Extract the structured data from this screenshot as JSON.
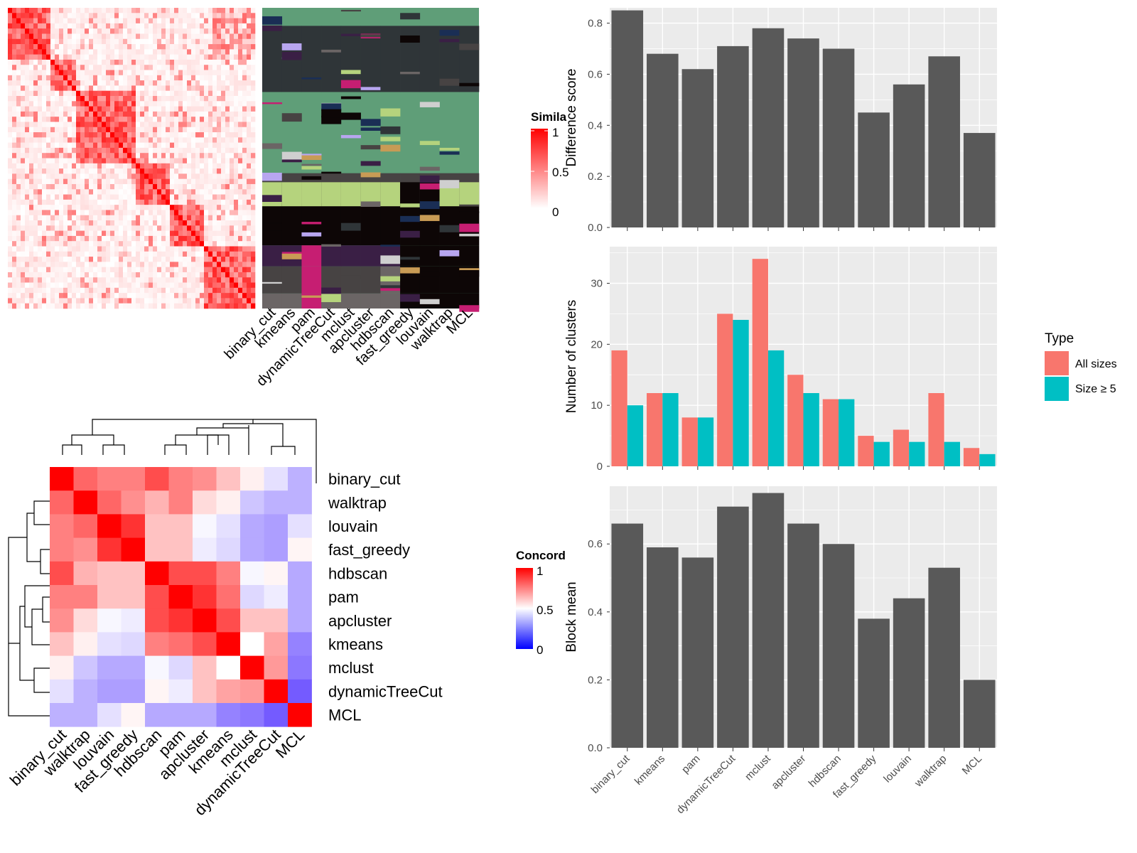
{
  "methods_order": [
    "binary_cut",
    "kmeans",
    "pam",
    "dynamicTreeCut",
    "mclust",
    "apcluster",
    "hdbscan",
    "fast_greedy",
    "louvain",
    "walktrap",
    "MCL"
  ],
  "similarity_legend": {
    "title": "Simila",
    "ticks": [
      "1",
      "0.5",
      "0"
    ]
  },
  "concordance_legend": {
    "title": "Concord",
    "ticks": [
      "1",
      "0.5",
      "0"
    ]
  },
  "type_legend": {
    "title": "Type",
    "items": [
      "All sizes",
      "Size ≥ 5"
    ]
  },
  "colors": {
    "all_sizes": "#F8766D",
    "size_ge5": "#00BFC4",
    "bar": "#595959",
    "panel": "#EBEBEB"
  },
  "chart_data": [
    {
      "type": "heatmap",
      "name": "similarity_matrix",
      "title": "",
      "legend_title": "Simila",
      "scale": [
        0,
        1
      ]
    },
    {
      "type": "heatmap",
      "name": "cluster_membership",
      "columns": [
        "binary_cut",
        "kmeans",
        "pam",
        "dynamicTreeCut",
        "mclust",
        "apcluster",
        "hdbscan",
        "fast_greedy",
        "louvain",
        "walktrap",
        "MCL"
      ]
    },
    {
      "type": "heatmap",
      "name": "concordance_matrix",
      "legend_title": "Concord",
      "labels": [
        "binary_cut",
        "walktrap",
        "louvain",
        "fast_greedy",
        "hdbscan",
        "pam",
        "apcluster",
        "kmeans",
        "mclust",
        "dynamicTreeCut",
        "MCL"
      ],
      "values": [
        [
          1.0,
          0.8,
          0.75,
          0.75,
          0.85,
          0.75,
          0.72,
          0.62,
          0.53,
          0.42,
          0.3
        ],
        [
          0.8,
          1.0,
          0.8,
          0.72,
          0.65,
          0.75,
          0.57,
          0.53,
          0.35,
          0.3,
          0.3
        ],
        [
          0.75,
          0.8,
          1.0,
          0.9,
          0.62,
          0.62,
          0.48,
          0.42,
          0.28,
          0.25,
          0.42
        ],
        [
          0.75,
          0.72,
          0.9,
          1.0,
          0.62,
          0.62,
          0.45,
          0.4,
          0.28,
          0.25,
          0.52
        ],
        [
          0.85,
          0.65,
          0.62,
          0.62,
          1.0,
          0.85,
          0.85,
          0.75,
          0.48,
          0.52,
          0.28
        ],
        [
          0.75,
          0.75,
          0.62,
          0.62,
          0.85,
          1.0,
          0.9,
          0.78,
          0.4,
          0.45,
          0.28
        ],
        [
          0.72,
          0.57,
          0.48,
          0.45,
          0.85,
          0.9,
          1.0,
          0.85,
          0.62,
          0.62,
          0.28
        ],
        [
          0.62,
          0.53,
          0.42,
          0.4,
          0.75,
          0.78,
          0.85,
          1.0,
          0.5,
          0.68,
          0.18
        ],
        [
          0.53,
          0.35,
          0.28,
          0.28,
          0.48,
          0.4,
          0.62,
          0.5,
          1.0,
          0.7,
          0.15
        ],
        [
          0.42,
          0.3,
          0.25,
          0.25,
          0.52,
          0.45,
          0.62,
          0.68,
          0.7,
          1.0,
          0.08
        ],
        [
          0.3,
          0.3,
          0.42,
          0.52,
          0.28,
          0.28,
          0.28,
          0.18,
          0.15,
          0.08,
          1.0
        ]
      ],
      "scale": [
        0,
        1
      ]
    },
    {
      "type": "bar",
      "categories": [
        "binary_cut",
        "kmeans",
        "pam",
        "dynamicTreeCut",
        "mclust",
        "apcluster",
        "hdbscan",
        "fast_greedy",
        "louvain",
        "walktrap",
        "MCL"
      ],
      "values": [
        0.85,
        0.68,
        0.62,
        0.71,
        0.78,
        0.74,
        0.7,
        0.45,
        0.56,
        0.67,
        0.37
      ],
      "ylabel": "Difference score",
      "ylim": [
        0,
        0.86
      ],
      "yticks": [
        "0.0",
        "0.2",
        "0.4",
        "0.6",
        "0.8"
      ]
    },
    {
      "type": "bar",
      "categories": [
        "binary_cut",
        "kmeans",
        "pam",
        "dynamicTreeCut",
        "mclust",
        "apcluster",
        "hdbscan",
        "fast_greedy",
        "louvain",
        "walktrap",
        "MCL"
      ],
      "series": [
        {
          "name": "All sizes",
          "values": [
            19,
            12,
            8,
            25,
            34,
            15,
            11,
            5,
            6,
            12,
            3
          ]
        },
        {
          "name": "Size ≥ 5",
          "values": [
            10,
            12,
            8,
            24,
            19,
            12,
            11,
            4,
            4,
            4,
            2
          ]
        }
      ],
      "ylabel": "Number of clusters",
      "ylim": [
        0,
        36
      ],
      "yticks": [
        "0",
        "10",
        "20",
        "30"
      ],
      "legend_title": "Type"
    },
    {
      "type": "bar",
      "categories": [
        "binary_cut",
        "kmeans",
        "pam",
        "dynamicTreeCut",
        "mclust",
        "apcluster",
        "hdbscan",
        "fast_greedy",
        "louvain",
        "walktrap",
        "MCL"
      ],
      "values": [
        0.66,
        0.59,
        0.56,
        0.71,
        0.75,
        0.66,
        0.6,
        0.38,
        0.44,
        0.53,
        0.2
      ],
      "ylabel": "Block mean",
      "ylim": [
        0,
        0.77
      ],
      "yticks": [
        "0.0",
        "0.2",
        "0.4",
        "0.6"
      ]
    }
  ]
}
